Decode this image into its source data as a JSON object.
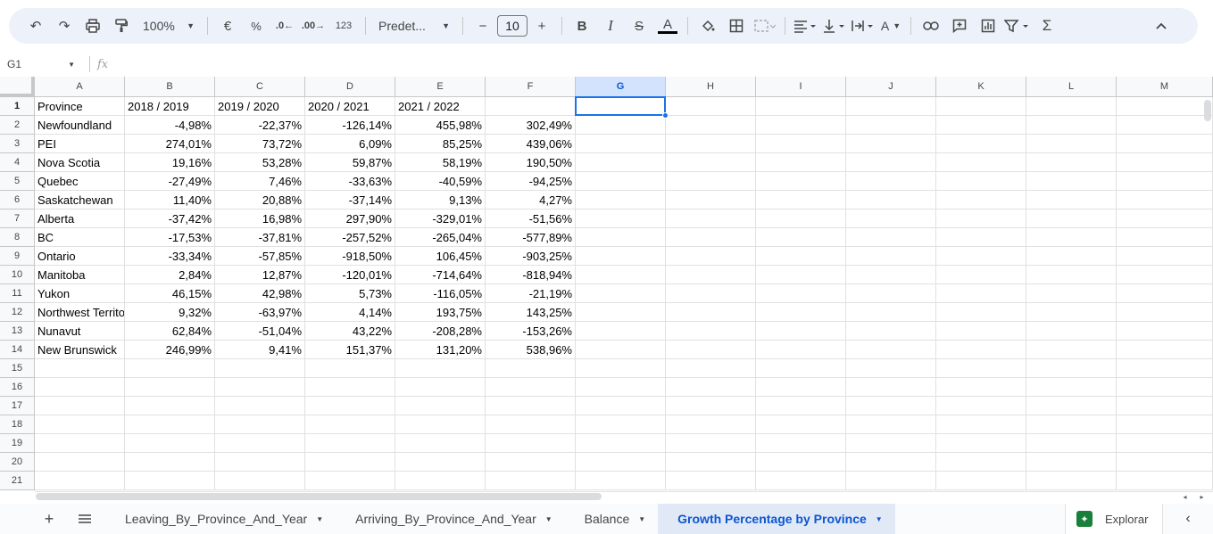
{
  "toolbar": {
    "zoom": "100%",
    "currency": "€",
    "percent": "%",
    "dec_less": ".0",
    "dec_more": ".00",
    "format_123": "123",
    "font": "Predet...",
    "font_size": "10",
    "bold": "B",
    "italic": "I",
    "strike": "S",
    "text_color": "A",
    "text_rotate": "A"
  },
  "formula_bar": {
    "name_box": "G1",
    "fx": "fx",
    "formula": ""
  },
  "columns": [
    "A",
    "B",
    "C",
    "D",
    "E",
    "F",
    "G",
    "H",
    "I",
    "J",
    "K",
    "L",
    "M"
  ],
  "selected_column": "G",
  "row_numbers": [
    "1",
    "2",
    "3",
    "4",
    "5",
    "6",
    "7",
    "8",
    "9",
    "10",
    "11",
    "12",
    "13",
    "14",
    "15",
    "16",
    "17",
    "18",
    "19",
    "20",
    "21"
  ],
  "rows": [
    [
      "Province",
      "2018 / 2019",
      "2019 / 2020",
      "2020 / 2021",
      "2021 / 2022",
      ""
    ],
    [
      "Newfoundland",
      "-4,98%",
      "-22,37%",
      "-126,14%",
      "455,98%",
      "302,49%"
    ],
    [
      "PEI",
      "274,01%",
      "73,72%",
      "6,09%",
      "85,25%",
      "439,06%"
    ],
    [
      "Nova Scotia",
      "19,16%",
      "53,28%",
      "59,87%",
      "58,19%",
      "190,50%"
    ],
    [
      "Quebec",
      "-27,49%",
      "7,46%",
      "-33,63%",
      "-40,59%",
      "-94,25%"
    ],
    [
      "Saskatchewan",
      "11,40%",
      "20,88%",
      "-37,14%",
      "9,13%",
      "4,27%"
    ],
    [
      "Alberta",
      "-37,42%",
      "16,98%",
      "297,90%",
      "-329,01%",
      "-51,56%"
    ],
    [
      "BC",
      "-17,53%",
      "-37,81%",
      "-257,52%",
      "-265,04%",
      "-577,89%"
    ],
    [
      "Ontario",
      "-33,34%",
      "-57,85%",
      "-918,50%",
      "106,45%",
      "-903,25%"
    ],
    [
      "Manitoba",
      "2,84%",
      "12,87%",
      "-120,01%",
      "-714,64%",
      "-818,94%"
    ],
    [
      "Yukon",
      "46,15%",
      "42,98%",
      "5,73%",
      "-116,05%",
      "-21,19%"
    ],
    [
      "Northwest Territories",
      "9,32%",
      "-63,97%",
      "4,14%",
      "193,75%",
      "143,25%"
    ],
    [
      "Nunavut",
      "62,84%",
      "-51,04%",
      "43,22%",
      "-208,28%",
      "-153,26%"
    ],
    [
      "New Brunswick",
      "246,99%",
      "9,41%",
      "151,37%",
      "131,20%",
      "538,96%"
    ]
  ],
  "sheet_tabs": [
    {
      "label": "Leaving_By_Province_And_Year",
      "active": false
    },
    {
      "label": "Arriving_By_Province_And_Year",
      "active": false
    },
    {
      "label": "Balance",
      "active": false
    },
    {
      "label": "Growth Percentage by Province",
      "active": true
    }
  ],
  "explore_label": "Explorar",
  "colors": {
    "accent": "#1a73e8",
    "toolbar_bg": "#edf2fa",
    "selected_header": "#d3e3fd",
    "explore_icon": "#188038"
  }
}
